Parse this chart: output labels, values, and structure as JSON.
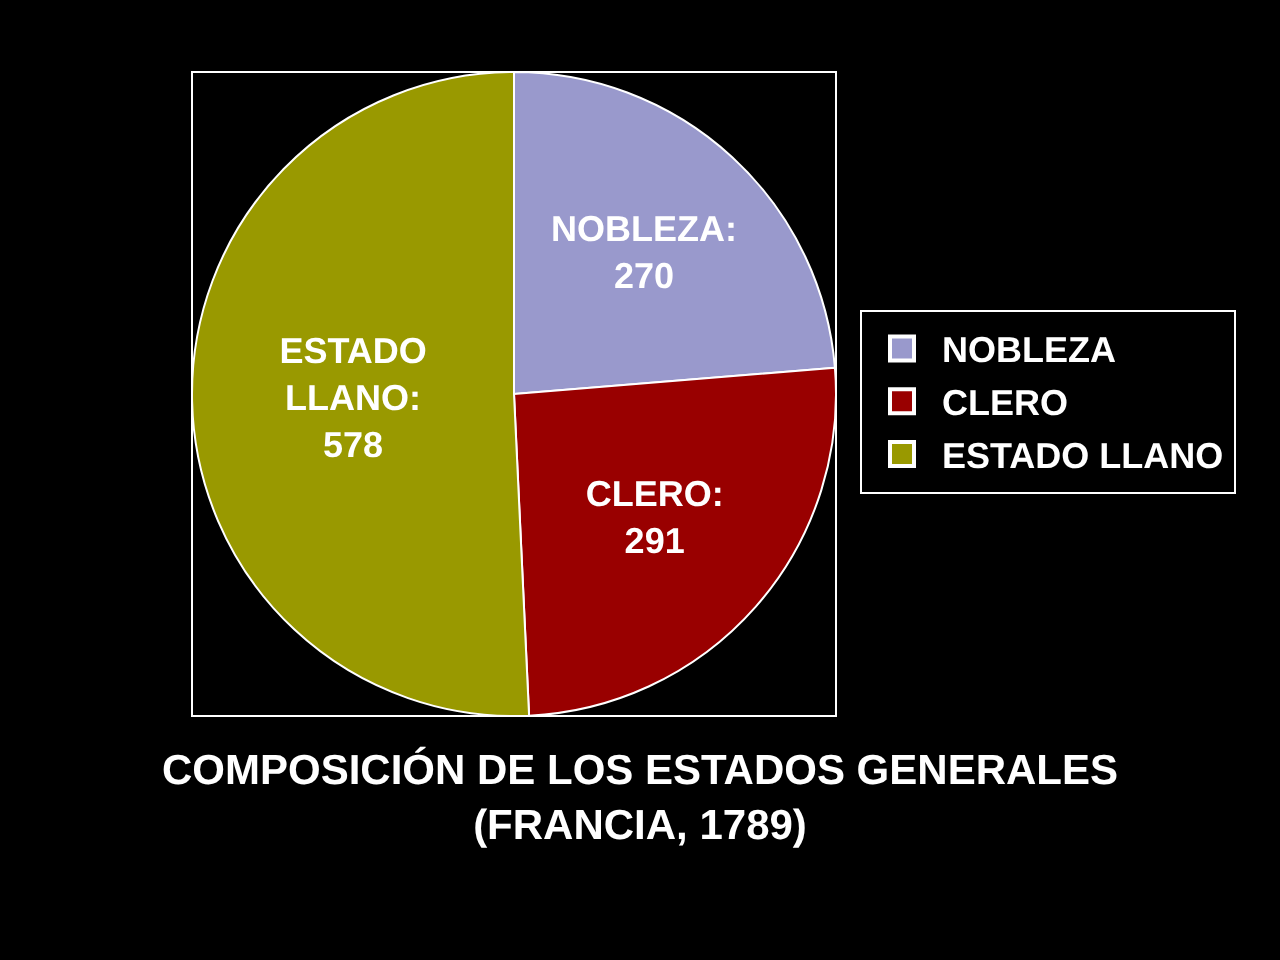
{
  "chart_data": {
    "type": "pie",
    "title": "COMPOSICIÓN DE LOS ESTADOS GENERALES\n(FRANCIA, 1789)",
    "categories": [
      "NOBLEZA",
      "CLERO",
      "ESTADO LLANO"
    ],
    "values": [
      270,
      291,
      578
    ],
    "colors": [
      "#9999cc",
      "#990000",
      "#999900"
    ],
    "value_labels": [
      "NOBLEZA:\n270",
      "CLERO:\n291",
      "ESTADO\nLLANO:\n578"
    ],
    "legend": "right"
  }
}
